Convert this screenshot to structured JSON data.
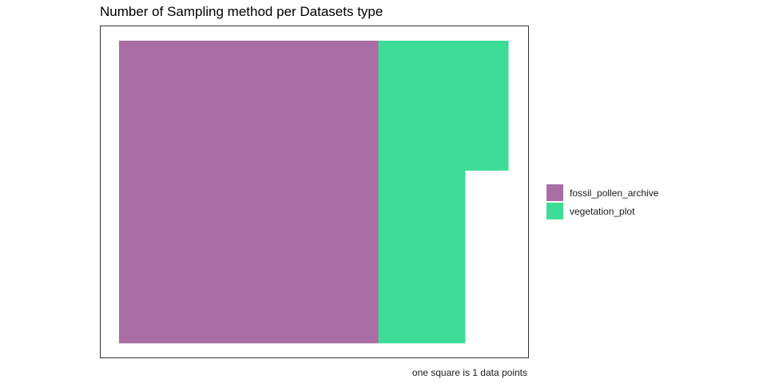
{
  "chart_data": {
    "type": "waffle",
    "title": "Number of Sampling method per Datasets type",
    "caption": "one square is 1 data points",
    "series": [
      {
        "name": "fossil_pollen_archive",
        "value": 42,
        "color": "#A86EA3"
      },
      {
        "name": "vegetation_plot",
        "value": 17,
        "color": "#3DDD97"
      }
    ],
    "grid": false,
    "legend_position": "right"
  }
}
